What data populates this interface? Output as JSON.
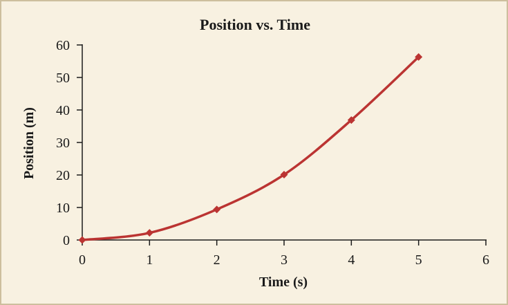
{
  "chart_data": {
    "type": "line",
    "title": "Position vs. Time",
    "xlabel": "Time (s)",
    "ylabel": "Position (m)",
    "xlim": [
      0,
      6
    ],
    "ylim": [
      0,
      60
    ],
    "xticks": [
      "0",
      "1",
      "2",
      "3",
      "4",
      "5",
      "6"
    ],
    "yticks": [
      "0",
      "10",
      "20",
      "30",
      "40",
      "50",
      "60"
    ],
    "grid": false,
    "legend": "none",
    "series": [
      {
        "color": "#bb3432",
        "marker": "diamond",
        "smooth": true,
        "x": [
          0,
          1,
          2,
          3,
          4,
          5
        ],
        "y": [
          0,
          2.2,
          9.4,
          20.1,
          36.9,
          56.3
        ]
      }
    ]
  }
}
